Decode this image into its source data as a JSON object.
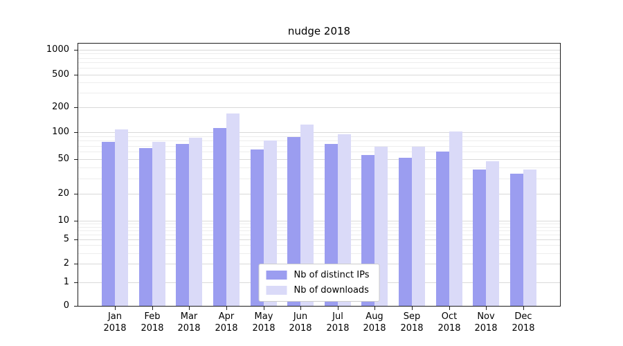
{
  "chart_data": {
    "type": "bar",
    "title": "nudge 2018",
    "categories": [
      "Jan 2018",
      "Feb 2018",
      "Mar 2018",
      "Apr 2018",
      "May 2018",
      "Jun 2018",
      "Jul 2018",
      "Aug 2018",
      "Sep 2018",
      "Oct 2018",
      "Nov 2018",
      "Dec 2018"
    ],
    "series": [
      {
        "name": "Nb of distinct IPs",
        "color": "#9b9df0",
        "values": [
          78,
          66,
          73,
          112,
          64,
          88,
          73,
          55,
          51,
          60,
          38,
          34
        ]
      },
      {
        "name": "Nb of downloads",
        "color": "#dadaf8",
        "values": [
          108,
          78,
          86,
          170,
          81,
          124,
          94,
          69,
          68,
          102,
          47,
          38
        ]
      }
    ],
    "yscale": "symlog",
    "yticks": [
      0,
      1,
      2,
      5,
      10,
      20,
      50,
      100,
      200,
      500,
      1000
    ],
    "ylim": [
      0,
      1000
    ],
    "grid": true,
    "legend": {
      "position": "lower center",
      "entries": [
        "Nb of distinct IPs",
        "Nb of downloads"
      ]
    }
  }
}
